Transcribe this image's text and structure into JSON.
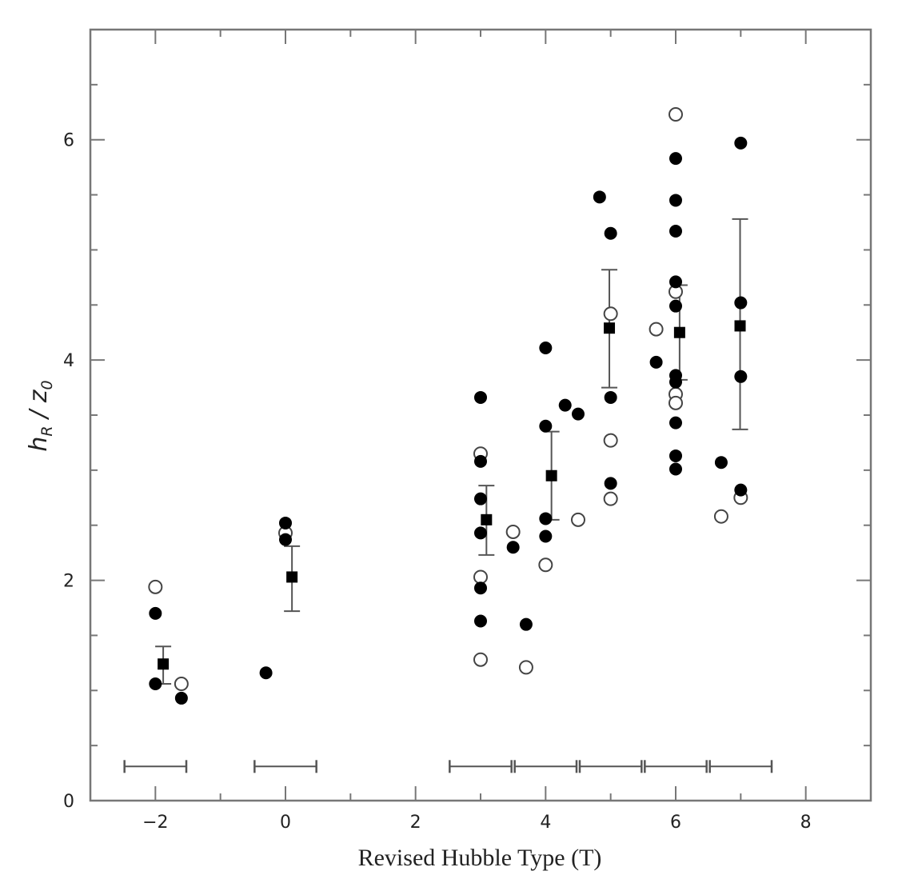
{
  "chart_data": {
    "type": "scatter",
    "title": "",
    "xlabel": "Revised Hubble Type (T)",
    "ylabel": "h_R / z_0",
    "ylabel_parts": {
      "main": "h",
      "sub1": "R",
      "sep": " / ",
      "main2": "z",
      "sub2": "0"
    },
    "xlim": [
      -3,
      9
    ],
    "ylim": [
      0,
      7
    ],
    "xticks_major": [
      -2,
      0,
      2,
      4,
      6,
      8
    ],
    "xtick_labels": [
      "−2",
      "0",
      "2",
      "4",
      "6",
      "8"
    ],
    "yticks_major": [
      0,
      2,
      4,
      6
    ],
    "ytick_labels": [
      "0",
      "2",
      "4",
      "6"
    ],
    "grid": false,
    "legend": null,
    "series": [
      {
        "name": "filled circles",
        "marker": "filled-circle",
        "points": [
          [
            -2.0,
            1.7
          ],
          [
            -2.0,
            1.06
          ],
          [
            -1.6,
            0.93
          ],
          [
            -0.3,
            1.16
          ],
          [
            0.0,
            2.52
          ],
          [
            0.0,
            2.37
          ],
          [
            3.0,
            3.66
          ],
          [
            3.0,
            3.08
          ],
          [
            3.0,
            2.74
          ],
          [
            3.0,
            2.43
          ],
          [
            3.0,
            1.93
          ],
          [
            3.0,
            1.63
          ],
          [
            3.5,
            2.3
          ],
          [
            3.7,
            1.6
          ],
          [
            4.0,
            4.11
          ],
          [
            4.0,
            3.4
          ],
          [
            4.0,
            2.56
          ],
          [
            4.0,
            2.4
          ],
          [
            4.3,
            3.59
          ],
          [
            4.5,
            3.51
          ],
          [
            4.83,
            5.48
          ],
          [
            5.0,
            5.15
          ],
          [
            5.0,
            3.66
          ],
          [
            5.0,
            2.88
          ],
          [
            5.7,
            3.98
          ],
          [
            6.0,
            5.83
          ],
          [
            6.0,
            5.45
          ],
          [
            6.0,
            5.17
          ],
          [
            6.0,
            4.71
          ],
          [
            6.0,
            4.49
          ],
          [
            6.0,
            3.86
          ],
          [
            6.0,
            3.8
          ],
          [
            6.0,
            3.43
          ],
          [
            6.0,
            3.13
          ],
          [
            6.0,
            3.01
          ],
          [
            6.7,
            3.07
          ],
          [
            7.0,
            5.97
          ],
          [
            7.0,
            4.52
          ],
          [
            7.0,
            3.85
          ],
          [
            7.0,
            2.82
          ]
        ]
      },
      {
        "name": "open circles",
        "marker": "open-circle",
        "points": [
          [
            -2.0,
            1.94
          ],
          [
            -1.6,
            1.06
          ],
          [
            0.0,
            2.43
          ],
          [
            3.0,
            3.15
          ],
          [
            3.0,
            2.03
          ],
          [
            3.0,
            1.28
          ],
          [
            3.5,
            2.44
          ],
          [
            3.7,
            1.21
          ],
          [
            4.0,
            2.14
          ],
          [
            4.5,
            2.55
          ],
          [
            5.0,
            4.42
          ],
          [
            5.0,
            3.27
          ],
          [
            5.0,
            2.74
          ],
          [
            5.7,
            4.28
          ],
          [
            6.0,
            6.23
          ],
          [
            6.0,
            4.62
          ],
          [
            6.0,
            3.69
          ],
          [
            6.0,
            3.61
          ],
          [
            6.7,
            2.58
          ],
          [
            7.0,
            2.75
          ]
        ]
      },
      {
        "name": "bin means",
        "marker": "filled-square",
        "points": [
          {
            "x": -1.88,
            "y": 1.24,
            "err_low": 1.06,
            "err_high": 1.4
          },
          {
            "x": 0.1,
            "y": 2.03,
            "err_low": 1.72,
            "err_high": 2.31
          },
          {
            "x": 3.09,
            "y": 2.55,
            "err_low": 2.23,
            "err_high": 2.86
          },
          {
            "x": 4.09,
            "y": 2.95,
            "err_low": 2.55,
            "err_high": 3.35
          },
          {
            "x": 4.98,
            "y": 4.29,
            "err_low": 3.75,
            "err_high": 4.82
          },
          {
            "x": 6.06,
            "y": 4.25,
            "err_low": 3.82,
            "err_high": 4.68
          },
          {
            "x": 6.99,
            "y": 4.31,
            "err_low": 3.37,
            "err_high": 5.28
          }
        ]
      }
    ],
    "bin_ranges": {
      "y": 0.31,
      "ranges": [
        [
          -2.5,
          -1.5
        ],
        [
          -0.5,
          0.5
        ],
        [
          2.5,
          3.5
        ],
        [
          3.5,
          4.5
        ],
        [
          4.5,
          5.5
        ],
        [
          5.5,
          6.5
        ],
        [
          6.5,
          7.5
        ]
      ]
    }
  },
  "colors": {
    "axis": "#777777",
    "marker": "#000000",
    "errorbar": "#555555"
  }
}
